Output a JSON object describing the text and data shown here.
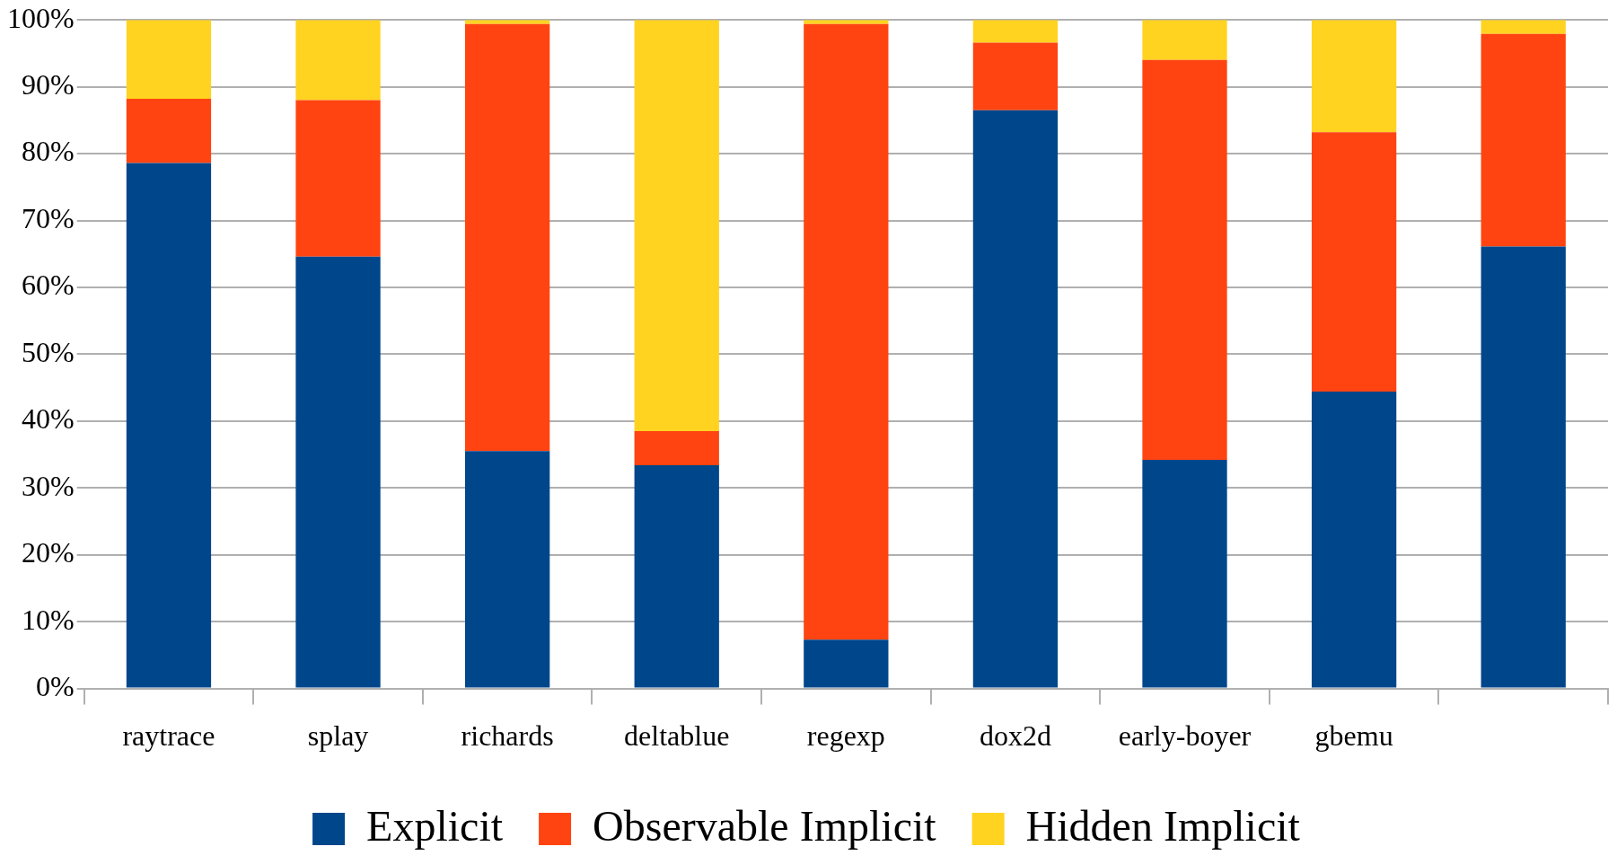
{
  "chart_data": {
    "type": "bar",
    "stacked": true,
    "categories": [
      "raytrace",
      "splay",
      "richards",
      "deltablue",
      "regexp",
      "dox2d",
      "early-boyer",
      "gbemu",
      null
    ],
    "series": [
      {
        "name": "Explicit",
        "color": "#00468b",
        "values": [
          78.6,
          64.6,
          35.5,
          33.4,
          7.3,
          86.5,
          34.2,
          44.4,
          66.1
        ]
      },
      {
        "name": "Observable Implicit",
        "color": "#ff4411",
        "values": [
          9.6,
          23.4,
          63.9,
          5.1,
          92.1,
          10.1,
          59.8,
          38.8,
          31.8
        ]
      },
      {
        "name": "Hidden Implicit",
        "color": "#ffd320",
        "values": [
          11.8,
          12.0,
          0.6,
          61.5,
          0.6,
          3.4,
          6.0,
          16.8,
          2.1
        ]
      }
    ],
    "ylim": [
      0,
      100
    ],
    "yticks": [
      {
        "value": 0,
        "label": "0%"
      },
      {
        "value": 10,
        "label": "10%"
      },
      {
        "value": 20,
        "label": "20%"
      },
      {
        "value": 30,
        "label": "30%"
      },
      {
        "value": 40,
        "label": "40%"
      },
      {
        "value": 50,
        "label": "50%"
      },
      {
        "value": 60,
        "label": "60%"
      },
      {
        "value": 70,
        "label": "70%"
      },
      {
        "value": 80,
        "label": "80%"
      },
      {
        "value": 90,
        "label": "90%"
      },
      {
        "value": 100,
        "label": "100%"
      }
    ],
    "grid": "y",
    "legend": "bottom"
  }
}
